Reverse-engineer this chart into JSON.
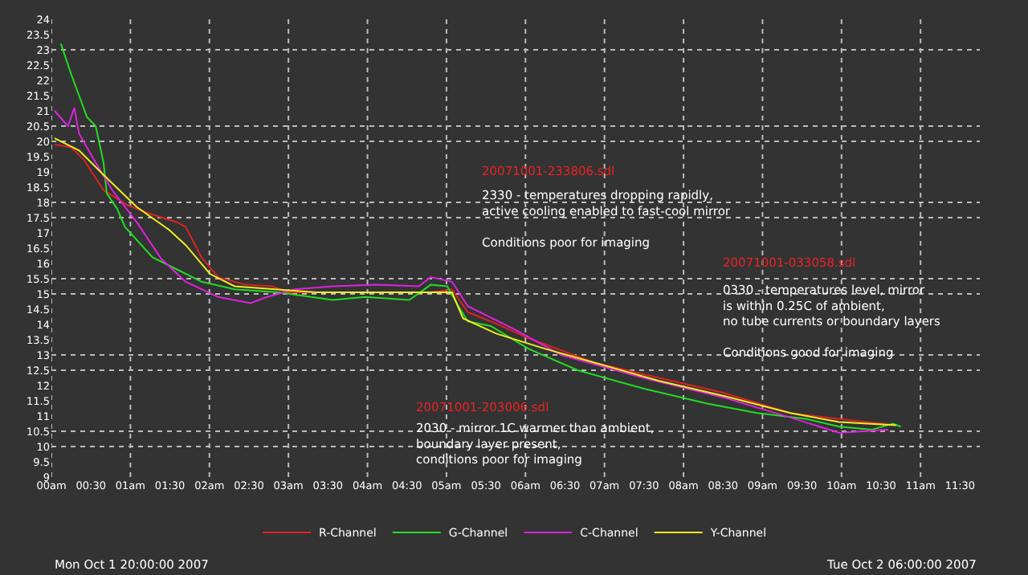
{
  "chart_data": {
    "type": "line",
    "xlim": [
      0,
      11.75
    ],
    "xticks": [
      {
        "value": 0,
        "label": "00am"
      },
      {
        "value": 0.5,
        "label": "00:30"
      },
      {
        "value": 1,
        "label": "01am"
      },
      {
        "value": 1.5,
        "label": "01:30"
      },
      {
        "value": 2,
        "label": "02am"
      },
      {
        "value": 2.5,
        "label": "02:30"
      },
      {
        "value": 3,
        "label": "03am"
      },
      {
        "value": 3.5,
        "label": "03:30"
      },
      {
        "value": 4,
        "label": "04am"
      },
      {
        "value": 4.5,
        "label": "04:30"
      },
      {
        "value": 5,
        "label": "05am"
      },
      {
        "value": 5.5,
        "label": "05:30"
      },
      {
        "value": 6,
        "label": "06am"
      },
      {
        "value": 6.5,
        "label": "06:30"
      },
      {
        "value": 7,
        "label": "07am"
      },
      {
        "value": 7.5,
        "label": "07:30"
      },
      {
        "value": 8,
        "label": "08am"
      },
      {
        "value": 8.5,
        "label": "08:30"
      },
      {
        "value": 9,
        "label": "09am"
      },
      {
        "value": 9.5,
        "label": "09:30"
      },
      {
        "value": 10,
        "label": "10am"
      },
      {
        "value": 10.5,
        "label": "10:30"
      },
      {
        "value": 11,
        "label": "11am"
      },
      {
        "value": 11.5,
        "label": "11:30"
      }
    ],
    "ylim": [
      9,
      24
    ],
    "yticks": [
      9,
      9.5,
      10,
      10.5,
      11,
      11.5,
      12,
      12.5,
      13,
      13.5,
      14,
      14.5,
      15,
      15.5,
      16,
      16.5,
      17,
      17.5,
      18,
      18.5,
      19,
      19.5,
      20,
      20.5,
      21,
      21.5,
      22,
      22.5,
      23,
      23.5,
      24
    ],
    "grid": "x",
    "legend": "bottom",
    "ref_lines": [
      {
        "axis": "y",
        "value": 23,
        "color": "#bbbbbb",
        "line_style": "dotted"
      },
      {
        "axis": "y",
        "value": 20.5,
        "color": "#bbbbbb",
        "line_style": "dotted"
      },
      {
        "axis": "y",
        "value": 20,
        "color": "#bbbbbb",
        "line_style": "dotted"
      },
      {
        "axis": "y",
        "value": 18,
        "color": "#bbbbbb",
        "line_style": "dotted"
      },
      {
        "axis": "y",
        "value": 17.5,
        "color": "#bbbbbb",
        "line_style": "dotted"
      },
      {
        "axis": "y",
        "value": 15.5,
        "color": "#bbbbbb",
        "line_style": "dotted"
      },
      {
        "axis": "y",
        "value": 15,
        "color": "#bbbbbb",
        "line_style": "dotted"
      },
      {
        "axis": "y",
        "value": 13,
        "color": "#bbbbbb",
        "line_style": "dotted"
      },
      {
        "axis": "y",
        "value": 12.5,
        "color": "#bbbbbb",
        "line_style": "dotted"
      },
      {
        "axis": "y",
        "value": 10.5,
        "color": "#bbbbbb",
        "line_style": "dotted"
      },
      {
        "axis": "y",
        "value": 10,
        "color": "#bbbbbb",
        "line_style": "dotted"
      }
    ],
    "series": [
      {
        "name": "R-Channel",
        "color": "#dd2222",
        "x": [
          0.04,
          0.25,
          0.41,
          0.66,
          0.97,
          1.28,
          1.59,
          1.7,
          1.9,
          2.11,
          2.46,
          2.79,
          3.0,
          3.29,
          4.8,
          5.07,
          5.27,
          5.56,
          6.04,
          6.87,
          7.69,
          8.52,
          9.35,
          9.97,
          10.69
        ],
        "values": [
          19.9,
          19.8,
          19.4,
          18.4,
          17.9,
          17.6,
          17.35,
          17.2,
          16.2,
          15.55,
          15.3,
          15.25,
          15.05,
          15.05,
          15.05,
          15.15,
          14.4,
          14.1,
          13.55,
          12.75,
          12.25,
          11.75,
          11.1,
          10.9,
          10.7
        ]
      },
      {
        "name": "G-Channel",
        "color": "#22dd22",
        "x": [
          0.12,
          0.25,
          0.35,
          0.45,
          0.56,
          0.66,
          0.7,
          0.83,
          0.93,
          1.28,
          1.63,
          1.9,
          2.32,
          2.87,
          3.56,
          3.97,
          4.53,
          4.8,
          5.01,
          5.15,
          5.27,
          5.56,
          6.04,
          6.66,
          7.49,
          8.31,
          8.93,
          9.56,
          9.97,
          10.38,
          10.65,
          10.75
        ],
        "values": [
          23.2,
          22.2,
          21.5,
          20.8,
          20.5,
          19.3,
          18.3,
          17.8,
          17.2,
          16.2,
          15.75,
          15.4,
          15.15,
          15.05,
          14.8,
          14.9,
          14.8,
          15.3,
          15.25,
          14.6,
          14.1,
          13.95,
          13.2,
          12.5,
          11.9,
          11.4,
          11.1,
          10.9,
          10.65,
          10.55,
          10.75,
          10.65
        ]
      },
      {
        "name": "C-Channel",
        "color": "#dd22dd",
        "x": [
          0.04,
          0.21,
          0.29,
          0.35,
          0.56,
          0.77,
          1.08,
          1.39,
          1.7,
          2.11,
          2.52,
          2.73,
          3.08,
          3.56,
          4.12,
          4.65,
          4.8,
          5.07,
          5.27,
          5.89,
          6.45,
          7.49,
          8.52,
          9.35,
          9.97,
          10.59
        ],
        "values": [
          21.0,
          20.5,
          21.1,
          20.25,
          19.3,
          18.4,
          17.35,
          16.15,
          15.4,
          14.9,
          14.7,
          14.9,
          15.15,
          15.25,
          15.3,
          15.25,
          15.55,
          15.4,
          14.6,
          13.8,
          13.0,
          12.25,
          11.6,
          10.95,
          10.45,
          10.55
        ]
      },
      {
        "name": "Y-Channel",
        "color": "#eeee22",
        "x": [
          0.04,
          0.35,
          0.66,
          1.08,
          1.49,
          1.7,
          2.01,
          2.32,
          2.83,
          3.35,
          4.8,
          5.07,
          5.21,
          5.63,
          6.25,
          6.87,
          7.69,
          8.52,
          9.35,
          9.97,
          10.69
        ],
        "values": [
          20.1,
          19.7,
          18.9,
          17.85,
          17.1,
          16.6,
          15.65,
          15.25,
          15.15,
          15.05,
          15.05,
          15.05,
          14.2,
          13.7,
          13.2,
          12.75,
          12.15,
          11.65,
          11.1,
          10.8,
          10.7
        ]
      }
    ],
    "annotations": [
      "20071001-233806.sdl",
      "2330 - temperatures dropping rapidly,\nactive cooling enabled to fast-cool mirror\n\nConditions poor for imaging",
      "20071001-033058.sdl",
      "0330 - temperatures level, mirror\nis within 0.25C of ambient,\nno tube currents or boundary layers\n\nConditions good for imaging",
      "20071001-203006.sdl",
      "2030 - mirror 1C warmer than ambient,\nboundary layer present,\nconditions poor for imaging",
      "Mon Oct 1 20:00:00 2007",
      "Tue Oct 2 06:00:00 2007"
    ]
  }
}
